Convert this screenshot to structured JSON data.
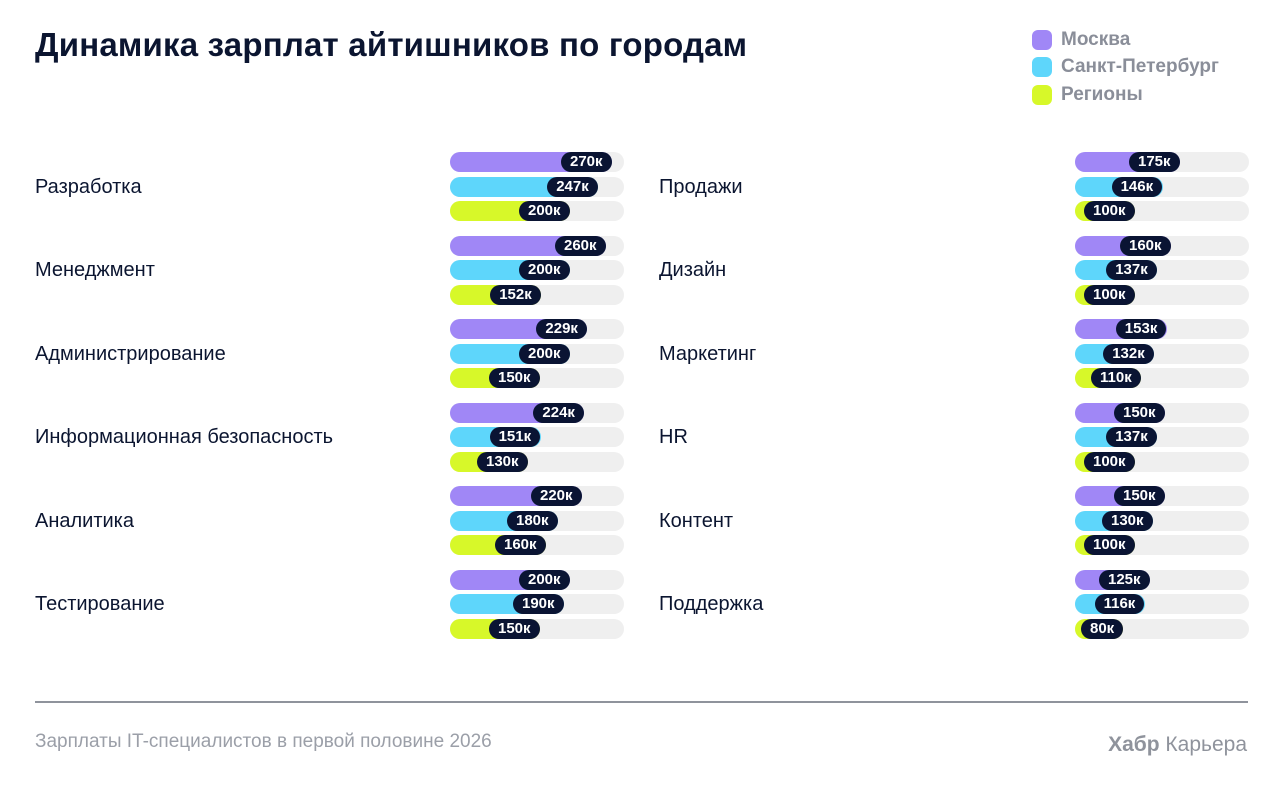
{
  "title": "Динамика зарплат айтишников по городам",
  "colors": {
    "moscow": "#a087f6",
    "spb": "#5ed6fb",
    "regions": "#d7f829",
    "track": "#efefef",
    "pill": "#0a1433"
  },
  "chart_data": {
    "type": "bar",
    "orientation": "horizontal",
    "title": "Динамика зарплат айтишников по городам",
    "value_suffix": "к",
    "xlim": [
      0,
      290
    ],
    "legend_position": "top-right",
    "series": [
      {
        "name": "Москва",
        "color": "#a087f6"
      },
      {
        "name": "Санкт-Петербург",
        "color": "#5ed6fb"
      },
      {
        "name": "Регионы",
        "color": "#d7f829"
      }
    ],
    "groups": [
      [
        {
          "category": "Разработка",
          "values": [
            270,
            247,
            200
          ]
        },
        {
          "category": "Менеджмент",
          "values": [
            260,
            200,
            152
          ]
        },
        {
          "category": "Администрирование",
          "values": [
            229,
            200,
            150
          ]
        },
        {
          "category": "Информационная безопасность",
          "values": [
            224,
            151,
            130
          ]
        },
        {
          "category": "Аналитика",
          "values": [
            220,
            180,
            160
          ]
        },
        {
          "category": "Тестирование",
          "values": [
            200,
            190,
            150
          ]
        }
      ],
      [
        {
          "category": "Продажи",
          "values": [
            175,
            146,
            100
          ]
        },
        {
          "category": "Дизайн",
          "values": [
            160,
            137,
            100
          ]
        },
        {
          "category": "Маркетинг",
          "values": [
            153,
            132,
            110
          ]
        },
        {
          "category": "HR",
          "values": [
            150,
            137,
            100
          ]
        },
        {
          "category": "Контент",
          "values": [
            150,
            130,
            100
          ]
        },
        {
          "category": "Поддержка",
          "values": [
            125,
            116,
            80
          ]
        }
      ]
    ]
  },
  "footer": {
    "caption": "Зарплаты IT-специалистов в первой половине 2026",
    "brand_bold": "Хабр",
    "brand_rest": "Карьера"
  }
}
